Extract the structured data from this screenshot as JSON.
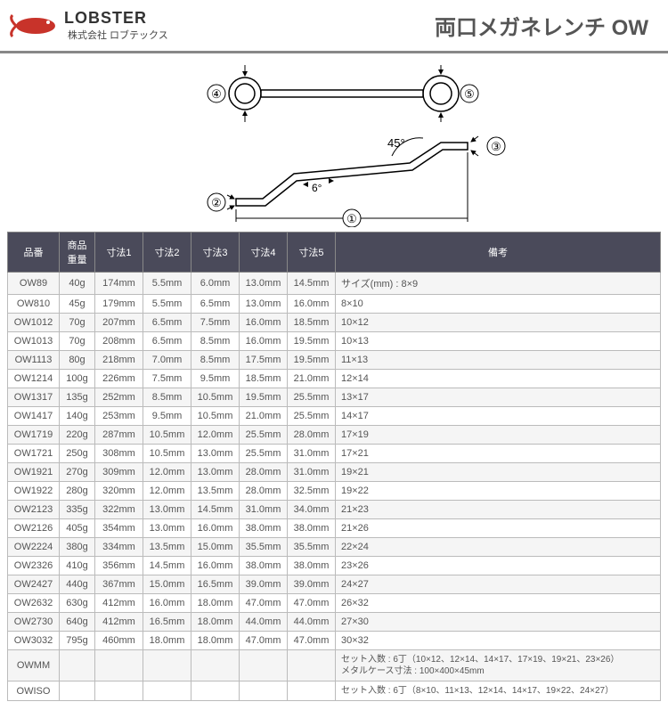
{
  "header": {
    "brand": "LOBSTER",
    "company": "株式会社 ロブテックス",
    "title": "両口メガネレンチ OW"
  },
  "diagram": {
    "labels": {
      "n1": "①",
      "n2": "②",
      "n3": "③",
      "n4": "④",
      "n5": "⑤"
    },
    "angle1": "45°",
    "angle2": "6°"
  },
  "table": {
    "columns": [
      "品番",
      "商品重量",
      "寸法1",
      "寸法2",
      "寸法3",
      "寸法4",
      "寸法5",
      "備考"
    ],
    "rows": [
      [
        "OW89",
        "40g",
        "174mm",
        "5.5mm",
        "6.0mm",
        "13.0mm",
        "14.5mm",
        "サイズ(mm) : 8×9"
      ],
      [
        "OW810",
        "45g",
        "179mm",
        "5.5mm",
        "6.5mm",
        "13.0mm",
        "16.0mm",
        "8×10"
      ],
      [
        "OW1012",
        "70g",
        "207mm",
        "6.5mm",
        "7.5mm",
        "16.0mm",
        "18.5mm",
        "10×12"
      ],
      [
        "OW1013",
        "70g",
        "208mm",
        "6.5mm",
        "8.5mm",
        "16.0mm",
        "19.5mm",
        "10×13"
      ],
      [
        "OW1113",
        "80g",
        "218mm",
        "7.0mm",
        "8.5mm",
        "17.5mm",
        "19.5mm",
        "11×13"
      ],
      [
        "OW1214",
        "100g",
        "226mm",
        "7.5mm",
        "9.5mm",
        "18.5mm",
        "21.0mm",
        "12×14"
      ],
      [
        "OW1317",
        "135g",
        "252mm",
        "8.5mm",
        "10.5mm",
        "19.5mm",
        "25.5mm",
        "13×17"
      ],
      [
        "OW1417",
        "140g",
        "253mm",
        "9.5mm",
        "10.5mm",
        "21.0mm",
        "25.5mm",
        "14×17"
      ],
      [
        "OW1719",
        "220g",
        "287mm",
        "10.5mm",
        "12.0mm",
        "25.5mm",
        "28.0mm",
        "17×19"
      ],
      [
        "OW1721",
        "250g",
        "308mm",
        "10.5mm",
        "13.0mm",
        "25.5mm",
        "31.0mm",
        "17×21"
      ],
      [
        "OW1921",
        "270g",
        "309mm",
        "12.0mm",
        "13.0mm",
        "28.0mm",
        "31.0mm",
        "19×21"
      ],
      [
        "OW1922",
        "280g",
        "320mm",
        "12.0mm",
        "13.5mm",
        "28.0mm",
        "32.5mm",
        "19×22"
      ],
      [
        "OW2123",
        "335g",
        "322mm",
        "13.0mm",
        "14.5mm",
        "31.0mm",
        "34.0mm",
        "21×23"
      ],
      [
        "OW2126",
        "405g",
        "354mm",
        "13.0mm",
        "16.0mm",
        "38.0mm",
        "38.0mm",
        "21×26"
      ],
      [
        "OW2224",
        "380g",
        "334mm",
        "13.5mm",
        "15.0mm",
        "35.5mm",
        "35.5mm",
        "22×24"
      ],
      [
        "OW2326",
        "410g",
        "356mm",
        "14.5mm",
        "16.0mm",
        "38.0mm",
        "38.0mm",
        "23×26"
      ],
      [
        "OW2427",
        "440g",
        "367mm",
        "15.0mm",
        "16.5mm",
        "39.0mm",
        "39.0mm",
        "24×27"
      ],
      [
        "OW2632",
        "630g",
        "412mm",
        "16.0mm",
        "18.0mm",
        "47.0mm",
        "47.0mm",
        "26×32"
      ],
      [
        "OW2730",
        "640g",
        "412mm",
        "16.5mm",
        "18.0mm",
        "44.0mm",
        "44.0mm",
        "27×30"
      ],
      [
        "OW3032",
        "795g",
        "460mm",
        "18.0mm",
        "18.0mm",
        "47.0mm",
        "47.0mm",
        "30×32"
      ]
    ],
    "setRows": [
      {
        "part": "OWMM",
        "remark_l1": "セット入数 : 6丁（10×12、12×14、14×17、17×19、19×21、23×26）",
        "remark_l2": "メタルケース寸法 : 100×400×45mm"
      },
      {
        "part": "OWISO",
        "remark_l1": "セット入数 : 6丁（8×10、11×13、12×14、14×17、19×22、24×27）",
        "remark_l2": ""
      }
    ]
  }
}
